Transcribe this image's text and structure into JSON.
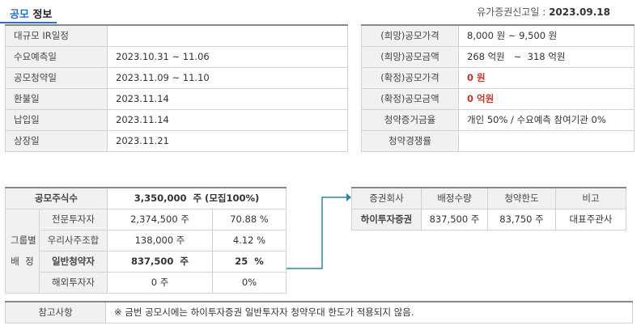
{
  "header": {
    "title_accent": "공모",
    "title_rest": "정보",
    "report_date_label": "유가증권신고일 :",
    "report_date_value": "2023.09.18"
  },
  "schedule": [
    {
      "label": "대규모 IR일정",
      "value": ""
    },
    {
      "label": "수요예측일",
      "value": "2023.10.31 ~ 11.06"
    },
    {
      "label": "공모청약일",
      "value": "2023.11.09 ~ 11.10"
    },
    {
      "label": "환불일",
      "value": "2023.11.14"
    },
    {
      "label": "납입일",
      "value": "2023.11.14"
    },
    {
      "label": "상장일",
      "value": "2023.11.21"
    }
  ],
  "price": [
    {
      "label": "(희망)공모가격",
      "value": "8,000 원 ~ 9,500 원"
    },
    {
      "label": "(희망)공모금액",
      "value": "268 억원   ~  318 억원"
    },
    {
      "label": "(확정)공모가격",
      "value": "0 원"
    },
    {
      "label": "(확정)공모금액",
      "value": "0 억원"
    },
    {
      "label": "청약증거금율",
      "value": "개인 50% / 수요예측 참여기관 0%"
    },
    {
      "label": "청약경쟁률",
      "value": ""
    }
  ],
  "shares": {
    "total_label": "공모주식수",
    "total_value": "3,350,000  주 (모집100%)",
    "group_label_1": "그룹별",
    "group_label_2": "배  정",
    "rows": [
      {
        "label": "전문투자자",
        "shares": "2,374,500 주",
        "pct": "70.88 %"
      },
      {
        "label": "우리사주조합",
        "shares": "138,000 주",
        "pct": "4.12 %"
      },
      {
        "label": "일반청약자",
        "shares": "837,500  주",
        "pct": "25  %"
      },
      {
        "label": "해외투자자",
        "shares": "0 주",
        "pct": "0%"
      }
    ]
  },
  "broker": {
    "headers": [
      "증권회사",
      "배정수량",
      "청약한도",
      "비고"
    ],
    "rows": [
      {
        "name": "하이투자증권",
        "qty": "837,500 주",
        "limit": "83,750 주",
        "note": "대표주관사"
      }
    ]
  },
  "note": {
    "label": "참고사항",
    "text": "※ 금번 공모시에는 하이투자증권 일반투자자 청약우대 한도가 적용되지 않음."
  },
  "colors": {
    "accent": "#2a6fc9",
    "arrow": "#2a8a9a",
    "highlight": "#c0392b"
  }
}
